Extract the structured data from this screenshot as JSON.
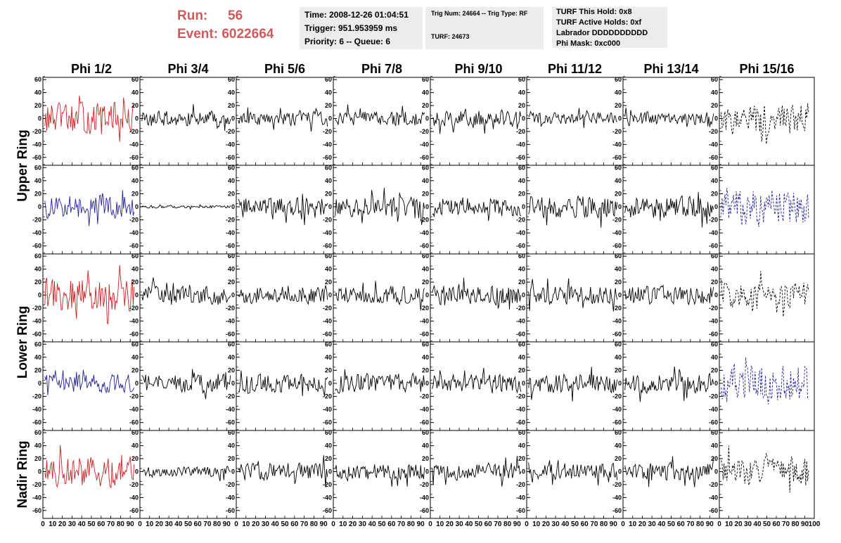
{
  "header": {
    "run_label": "Run:",
    "run_value": "56",
    "event_label": "Event:",
    "event_value": "6022664"
  },
  "info_box_1": {
    "time": "Time: 2008-12-26 01:04:51",
    "trigger": "Trigger: 951.953959 ms",
    "priority": "Priority: 6 -- Queue: 6"
  },
  "info_box_2": {
    "trig": "Trig Num: 24664 -- Trig Type: RF",
    "turf": "TURF: 24673"
  },
  "info_box_3": {
    "hold": "TURF This Hold: 0x8",
    "active": "TURF Active Holds: 0xf",
    "labrador": "Labrador DDDDDDDDDD",
    "phimask": "Phi Mask: 0xc000"
  },
  "chart_data": {
    "type": "line",
    "columns": [
      "Phi 1/2",
      "Phi 3/4",
      "Phi 5/6",
      "Phi 7/8",
      "Phi 9/10",
      "Phi 11/12",
      "Phi 13/14",
      "Phi 15/16"
    ],
    "ring_labels": [
      {
        "label": "Upper Ring",
        "rows": [
          0,
          1
        ]
      },
      {
        "label": "Lower Ring",
        "rows": [
          2,
          3
        ]
      },
      {
        "label": "Nadir Ring",
        "rows": [
          4
        ]
      }
    ],
    "xlim": [
      0,
      100
    ],
    "ylim": [
      -70,
      70
    ],
    "x_ticks": [
      0,
      10,
      20,
      30,
      40,
      50,
      60,
      70,
      80,
      90,
      100
    ],
    "y_ticks": [
      -60,
      -40,
      -20,
      0,
      20,
      40,
      60
    ],
    "x_tick_labels": [
      "0",
      "10",
      "20",
      "30",
      "40",
      "50",
      "60",
      "70",
      "80",
      "90",
      "100"
    ],
    "y_tick_labels": [
      "-60",
      "-40",
      "-20",
      "0",
      "20",
      "40",
      "60"
    ],
    "channel_samples": 94,
    "colors": {
      "red": "#cc2222",
      "blue": "#22229a",
      "black": "#000000"
    },
    "panels": [
      {
        "row": 0,
        "col": 0,
        "color": "red",
        "amp": 22,
        "dashed": false
      },
      {
        "row": 0,
        "col": 1,
        "color": "black",
        "amp": 11,
        "dashed": false
      },
      {
        "row": 0,
        "col": 2,
        "color": "black",
        "amp": 10,
        "dashed": false
      },
      {
        "row": 0,
        "col": 3,
        "color": "black",
        "amp": 11,
        "dashed": false
      },
      {
        "row": 0,
        "col": 4,
        "color": "black",
        "amp": 12,
        "dashed": false
      },
      {
        "row": 0,
        "col": 5,
        "color": "black",
        "amp": 9,
        "dashed": false
      },
      {
        "row": 0,
        "col": 6,
        "color": "black",
        "amp": 9,
        "dashed": false
      },
      {
        "row": 0,
        "col": 7,
        "color": "black",
        "amp": 22,
        "dashed": true
      },
      {
        "row": 1,
        "col": 0,
        "color": "blue",
        "amp": 16,
        "dashed": false
      },
      {
        "row": 1,
        "col": 1,
        "color": "black",
        "amp": 2,
        "dashed": false
      },
      {
        "row": 1,
        "col": 2,
        "color": "black",
        "amp": 14,
        "dashed": false
      },
      {
        "row": 1,
        "col": 3,
        "color": "black",
        "amp": 14,
        "dashed": false
      },
      {
        "row": 1,
        "col": 4,
        "color": "black",
        "amp": 14,
        "dashed": false
      },
      {
        "row": 1,
        "col": 5,
        "color": "black",
        "amp": 16,
        "dashed": false
      },
      {
        "row": 1,
        "col": 6,
        "color": "black",
        "amp": 16,
        "dashed": false
      },
      {
        "row": 1,
        "col": 7,
        "color": "blue",
        "amp": 26,
        "dashed": true
      },
      {
        "row": 2,
        "col": 0,
        "color": "red",
        "amp": 24,
        "dashed": false
      },
      {
        "row": 2,
        "col": 1,
        "color": "black",
        "amp": 13,
        "dashed": false
      },
      {
        "row": 2,
        "col": 2,
        "color": "black",
        "amp": 13,
        "dashed": false
      },
      {
        "row": 2,
        "col": 3,
        "color": "black",
        "amp": 13,
        "dashed": false
      },
      {
        "row": 2,
        "col": 4,
        "color": "black",
        "amp": 14,
        "dashed": false
      },
      {
        "row": 2,
        "col": 5,
        "color": "black",
        "amp": 13,
        "dashed": false
      },
      {
        "row": 2,
        "col": 6,
        "color": "black",
        "amp": 14,
        "dashed": false
      },
      {
        "row": 2,
        "col": 7,
        "color": "black",
        "amp": 18,
        "dashed": true
      },
      {
        "row": 3,
        "col": 0,
        "color": "blue",
        "amp": 13,
        "dashed": false
      },
      {
        "row": 3,
        "col": 1,
        "color": "black",
        "amp": 13,
        "dashed": false
      },
      {
        "row": 3,
        "col": 2,
        "color": "black",
        "amp": 13,
        "dashed": false
      },
      {
        "row": 3,
        "col": 3,
        "color": "black",
        "amp": 14,
        "dashed": false
      },
      {
        "row": 3,
        "col": 4,
        "color": "black",
        "amp": 13,
        "dashed": false
      },
      {
        "row": 3,
        "col": 5,
        "color": "black",
        "amp": 14,
        "dashed": false
      },
      {
        "row": 3,
        "col": 6,
        "color": "black",
        "amp": 14,
        "dashed": false
      },
      {
        "row": 3,
        "col": 7,
        "color": "blue",
        "amp": 27,
        "dashed": true
      },
      {
        "row": 4,
        "col": 0,
        "color": "red",
        "amp": 22,
        "dashed": false
      },
      {
        "row": 4,
        "col": 1,
        "color": "black",
        "amp": 8,
        "dashed": false
      },
      {
        "row": 4,
        "col": 2,
        "color": "black",
        "amp": 13,
        "dashed": false
      },
      {
        "row": 4,
        "col": 3,
        "color": "black",
        "amp": 12,
        "dashed": false
      },
      {
        "row": 4,
        "col": 4,
        "color": "black",
        "amp": 13,
        "dashed": false
      },
      {
        "row": 4,
        "col": 5,
        "color": "black",
        "amp": 12,
        "dashed": false
      },
      {
        "row": 4,
        "col": 6,
        "color": "black",
        "amp": 13,
        "dashed": false
      },
      {
        "row": 4,
        "col": 7,
        "color": "black",
        "amp": 20,
        "dashed": true
      }
    ]
  }
}
